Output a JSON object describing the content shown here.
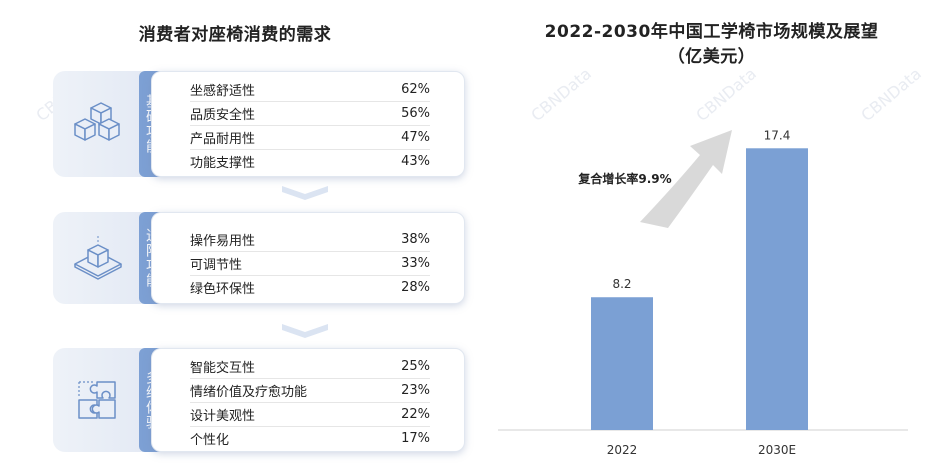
{
  "left": {
    "title": "消费者对座椅消费的需求",
    "sections": [
      {
        "category": "基础功能",
        "icon": "cubes-icon",
        "rows": [
          {
            "label": "坐感舒适性",
            "value": "62%"
          },
          {
            "label": "品质安全性",
            "value": "56%"
          },
          {
            "label": "产品耐用性",
            "value": "47%"
          },
          {
            "label": "功能支撑性",
            "value": "43%"
          }
        ]
      },
      {
        "category": "进阶功能",
        "icon": "layered-cube-icon",
        "rows": [
          {
            "label": "操作易用性",
            "value": "38%"
          },
          {
            "label": "可调节性",
            "value": "33%"
          },
          {
            "label": "绿色环保性",
            "value": "28%"
          }
        ]
      },
      {
        "category": "多维体验",
        "icon": "puzzle-icon",
        "rows": [
          {
            "label": "智能交互性",
            "value": "25%"
          },
          {
            "label": "情绪价值及疗愈功能",
            "value": "23%"
          },
          {
            "label": "设计美观性",
            "value": "22%"
          },
          {
            "label": "个性化",
            "value": "17%"
          }
        ]
      }
    ]
  },
  "watermark": "CBNData",
  "chart_data": {
    "type": "bar",
    "title": "2022-2030年中国工学椅市场规模及展望",
    "subtitle": "（亿美元）",
    "categories": [
      "2022",
      "2030E"
    ],
    "values": [
      8.2,
      17.4
    ],
    "value_labels": [
      "8.2",
      "17.4"
    ],
    "annotation": "复合增长率9.9%",
    "ylim": [
      0,
      21
    ],
    "bar_color": "#7ba0d4",
    "grid": false
  }
}
